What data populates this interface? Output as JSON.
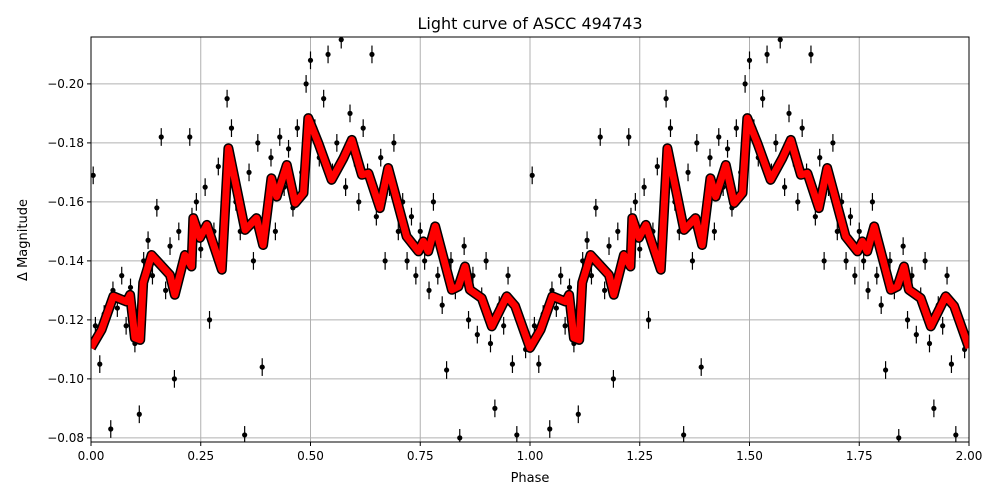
{
  "chart_data": {
    "type": "scatter",
    "title": "Light curve of ASCC 494743",
    "xlabel": "Phase",
    "ylabel": "Δ Magnitude",
    "xlim": [
      0,
      2
    ],
    "ylim": [
      -0.0786,
      -0.2159
    ],
    "y_inverted": true,
    "grid": true,
    "x_ticks": [
      "0.00",
      "0.25",
      "0.50",
      "0.75",
      "1.00",
      "1.25",
      "1.50",
      "1.75",
      "2.00"
    ],
    "x_tick_values": [
      0,
      0.25,
      0.5,
      0.75,
      1,
      1.25,
      1.5,
      1.75,
      2
    ],
    "y_ticks": [
      "−0.08",
      "−0.10",
      "−0.12",
      "−0.14",
      "−0.16",
      "−0.18",
      "−0.20"
    ],
    "y_tick_values": [
      -0.08,
      -0.1,
      -0.12,
      -0.14,
      -0.16,
      -0.18,
      -0.2
    ],
    "colors": {
      "points": "#000000",
      "model": "#ff0000",
      "model_edge": "#000000",
      "grid": "#b0b0b0"
    },
    "points_repeat_period": 1,
    "points_error": 0.003,
    "points": [
      [
        0.005,
        -0.169
      ],
      [
        0.01,
        -0.118
      ],
      [
        0.02,
        -0.105
      ],
      [
        0.03,
        -0.122
      ],
      [
        0.045,
        -0.083
      ],
      [
        0.05,
        -0.13
      ],
      [
        0.06,
        -0.124
      ],
      [
        0.07,
        -0.135
      ],
      [
        0.08,
        -0.118
      ],
      [
        0.09,
        -0.131
      ],
      [
        0.1,
        -0.112
      ],
      [
        0.11,
        -0.088
      ],
      [
        0.12,
        -0.14
      ],
      [
        0.13,
        -0.147
      ],
      [
        0.14,
        -0.135
      ],
      [
        0.15,
        -0.158
      ],
      [
        0.16,
        -0.182
      ],
      [
        0.17,
        -0.13
      ],
      [
        0.18,
        -0.145
      ],
      [
        0.19,
        -0.1
      ],
      [
        0.2,
        -0.15
      ],
      [
        0.21,
        -0.138
      ],
      [
        0.225,
        -0.182
      ],
      [
        0.23,
        -0.155
      ],
      [
        0.24,
        -0.16
      ],
      [
        0.25,
        -0.144
      ],
      [
        0.26,
        -0.165
      ],
      [
        0.27,
        -0.12
      ],
      [
        0.28,
        -0.15
      ],
      [
        0.29,
        -0.172
      ],
      [
        0.3,
        -0.14
      ],
      [
        0.31,
        -0.195
      ],
      [
        0.32,
        -0.185
      ],
      [
        0.33,
        -0.16
      ],
      [
        0.34,
        -0.15
      ],
      [
        0.35,
        -0.081
      ],
      [
        0.36,
        -0.17
      ],
      [
        0.37,
        -0.14
      ],
      [
        0.38,
        -0.18
      ],
      [
        0.39,
        -0.104
      ],
      [
        0.4,
        -0.16
      ],
      [
        0.41,
        -0.175
      ],
      [
        0.42,
        -0.15
      ],
      [
        0.43,
        -0.182
      ],
      [
        0.44,
        -0.165
      ],
      [
        0.45,
        -0.178
      ],
      [
        0.46,
        -0.158
      ],
      [
        0.47,
        -0.185
      ],
      [
        0.48,
        -0.17
      ],
      [
        0.49,
        -0.2
      ],
      [
        0.5,
        -0.208
      ],
      [
        0.51,
        -0.185
      ],
      [
        0.52,
        -0.175
      ],
      [
        0.53,
        -0.195
      ],
      [
        0.54,
        -0.21
      ],
      [
        0.55,
        -0.17
      ],
      [
        0.56,
        -0.18
      ],
      [
        0.57,
        -0.215
      ],
      [
        0.58,
        -0.165
      ],
      [
        0.59,
        -0.19
      ],
      [
        0.6,
        -0.175
      ],
      [
        0.61,
        -0.16
      ],
      [
        0.62,
        -0.185
      ],
      [
        0.63,
        -0.17
      ],
      [
        0.64,
        -0.21
      ],
      [
        0.65,
        -0.155
      ],
      [
        0.66,
        -0.175
      ],
      [
        0.67,
        -0.14
      ],
      [
        0.68,
        -0.165
      ],
      [
        0.69,
        -0.18
      ],
      [
        0.7,
        -0.15
      ],
      [
        0.71,
        -0.16
      ],
      [
        0.72,
        -0.14
      ],
      [
        0.73,
        -0.155
      ],
      [
        0.74,
        -0.135
      ],
      [
        0.75,
        -0.15
      ],
      [
        0.76,
        -0.14
      ],
      [
        0.77,
        -0.13
      ],
      [
        0.78,
        -0.16
      ],
      [
        0.79,
        -0.135
      ],
      [
        0.8,
        -0.125
      ],
      [
        0.81,
        -0.103
      ],
      [
        0.82,
        -0.14
      ],
      [
        0.83,
        -0.13
      ],
      [
        0.84,
        -0.08
      ],
      [
        0.85,
        -0.145
      ],
      [
        0.86,
        -0.12
      ],
      [
        0.87,
        -0.135
      ],
      [
        0.88,
        -0.115
      ],
      [
        0.89,
        -0.128
      ],
      [
        0.9,
        -0.14
      ],
      [
        0.91,
        -0.112
      ],
      [
        0.92,
        -0.09
      ],
      [
        0.93,
        -0.125
      ],
      [
        0.94,
        -0.118
      ],
      [
        0.95,
        -0.135
      ],
      [
        0.96,
        -0.105
      ],
      [
        0.97,
        -0.081
      ],
      [
        0.98,
        -0.12
      ],
      [
        0.99,
        -0.11
      ]
    ],
    "model": {
      "phase": [
        0,
        0.024,
        0.051,
        0.081,
        0.089,
        0.1,
        0.112,
        0.119,
        0.138,
        0.18,
        0.191,
        0.214,
        0.229,
        0.233,
        0.248,
        0.264,
        0.298,
        0.313,
        0.351,
        0.377,
        0.392,
        0.411,
        0.423,
        0.446,
        0.465,
        0.484,
        0.495,
        0.518,
        0.548,
        0.575,
        0.594,
        0.617,
        0.632,
        0.658,
        0.677,
        0.719,
        0.746,
        0.757,
        0.768,
        0.784,
        0.822,
        0.837,
        0.852,
        0.863,
        0.89,
        0.913,
        0.947,
        0.966,
        1.0
      ],
      "mag": [
        -0.1105,
        -0.1166,
        -0.128,
        -0.1262,
        -0.1285,
        -0.1139,
        -0.1132,
        -0.1326,
        -0.142,
        -0.1352,
        -0.1285,
        -0.142,
        -0.1381,
        -0.1545,
        -0.1478,
        -0.1522,
        -0.137,
        -0.1782,
        -0.1505,
        -0.1545,
        -0.1454,
        -0.168,
        -0.1618,
        -0.1725,
        -0.1596,
        -0.163,
        -0.1884,
        -0.1799,
        -0.1675,
        -0.1748,
        -0.181,
        -0.1692,
        -0.1697,
        -0.1579,
        -0.1715,
        -0.1483,
        -0.1432,
        -0.1466,
        -0.1432,
        -0.1517,
        -0.1302,
        -0.1313,
        -0.1381,
        -0.1302,
        -0.1274,
        -0.1178,
        -0.128,
        -0.1247,
        -0.1105
      ]
    }
  }
}
